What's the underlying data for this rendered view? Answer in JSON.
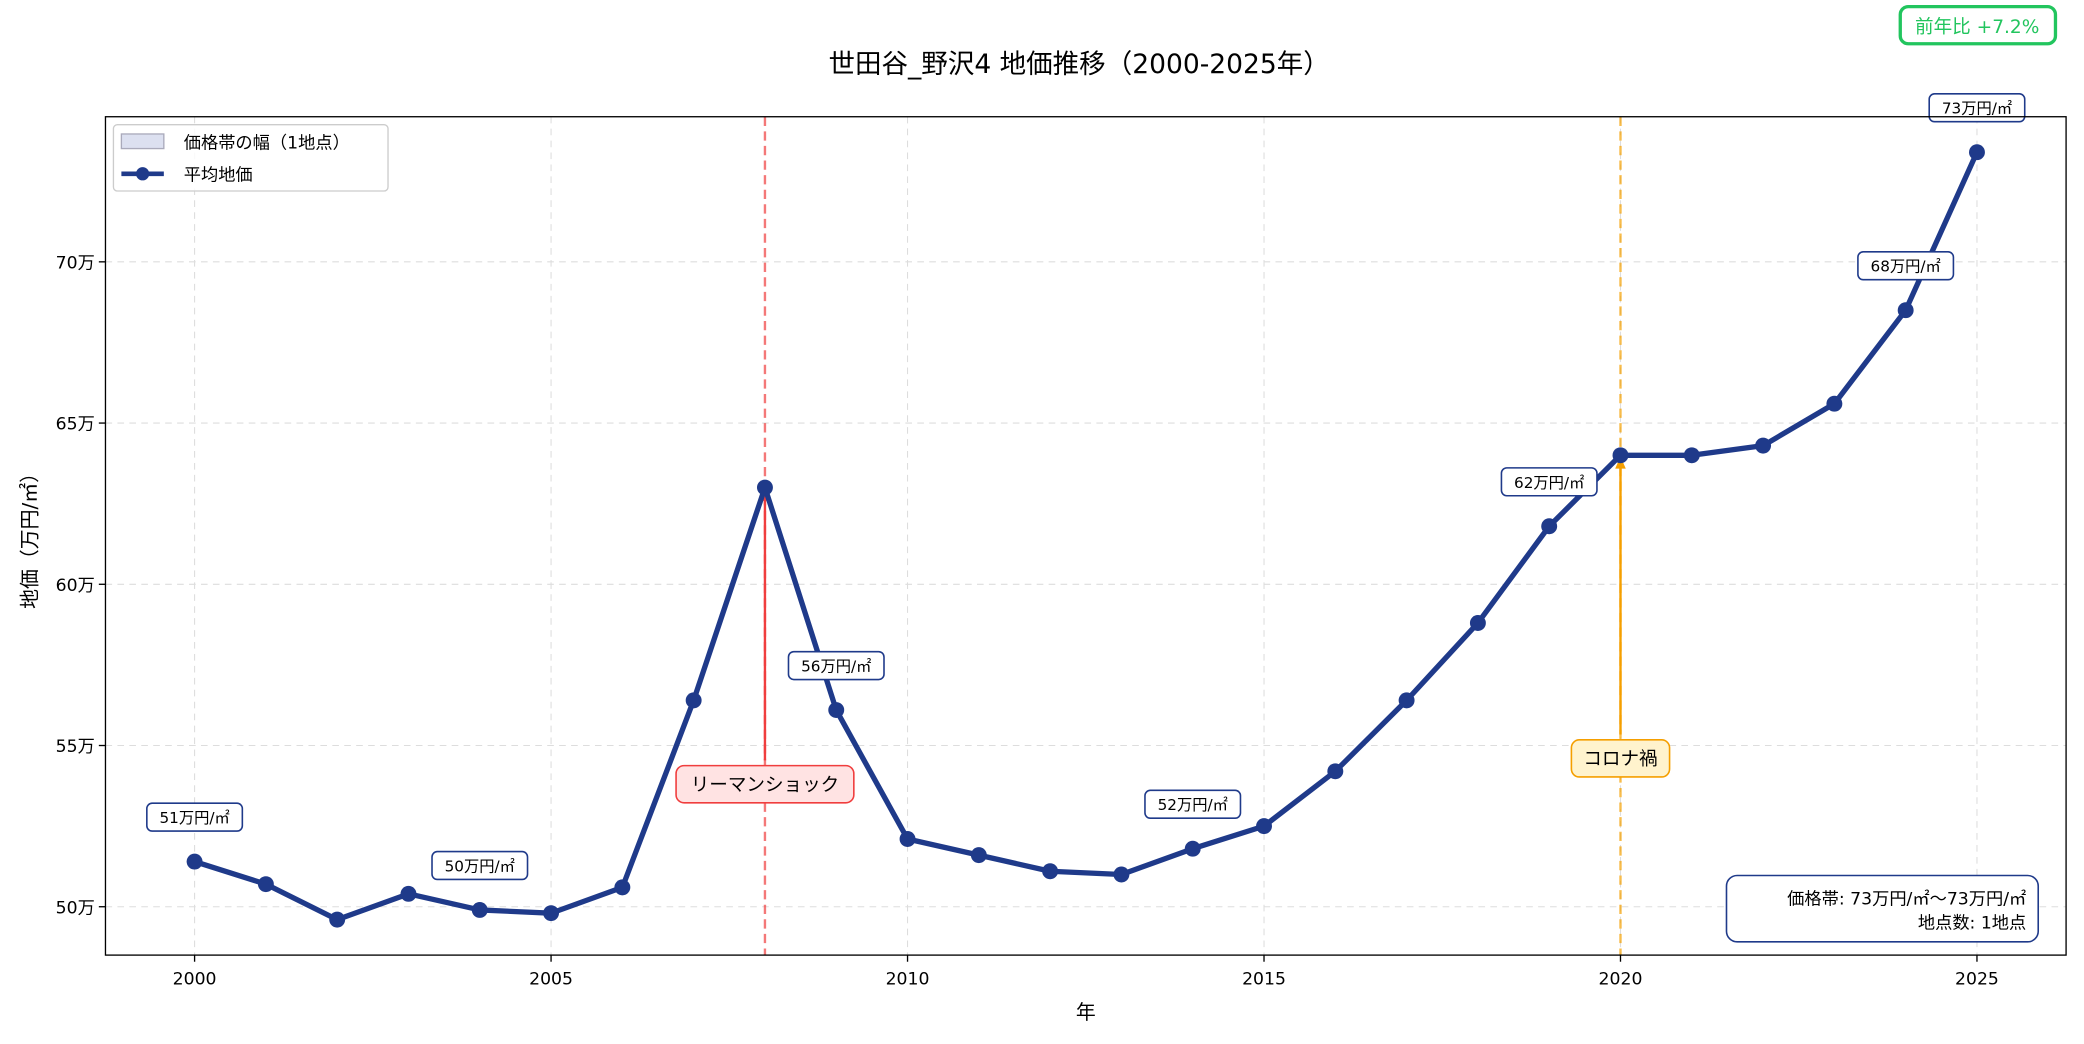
{
  "chart_data": {
    "type": "line",
    "title": "世田谷_野沢4 地価推移（2000-2025年）",
    "xlabel": "年",
    "ylabel": "地価（万円/㎡）",
    "xlim": [
      1998.75,
      2026.25
    ],
    "ylim": [
      48.5,
      74.5
    ],
    "xticks": [
      2000,
      2005,
      2010,
      2015,
      2020,
      2025
    ],
    "yticks": [
      50,
      55,
      60,
      65,
      70
    ],
    "ytick_labels": [
      "50万",
      "55万",
      "60万",
      "65万",
      "70万"
    ],
    "grid": true,
    "legend_placement": "top-left",
    "legend": [
      "価格帯の幅（1地点）",
      "平均地価"
    ],
    "series": [
      {
        "name": "平均地価",
        "color": "#1f3a8a",
        "x": [
          2000,
          2001,
          2002,
          2003,
          2004,
          2005,
          2006,
          2007,
          2008,
          2009,
          2010,
          2011,
          2012,
          2013,
          2014,
          2015,
          2016,
          2017,
          2018,
          2019,
          2020,
          2021,
          2022,
          2023,
          2024,
          2025
        ],
        "y": [
          51.4,
          50.7,
          49.6,
          50.4,
          49.9,
          49.8,
          50.6,
          56.4,
          63.0,
          56.1,
          52.1,
          51.6,
          51.1,
          51.0,
          51.8,
          52.5,
          54.2,
          56.4,
          58.8,
          61.8,
          64.0,
          64.0,
          64.3,
          65.6,
          68.5,
          73.4
        ]
      }
    ],
    "band_color": "#c5cce6",
    "point_labels": [
      {
        "x": 2000,
        "y": 51.4,
        "text": "51万円/㎡"
      },
      {
        "x": 2004,
        "y": 49.9,
        "text": "50万円/㎡"
      },
      {
        "x": 2009,
        "y": 56.1,
        "text": "56万円/㎡"
      },
      {
        "x": 2014,
        "y": 51.8,
        "text": "52万円/㎡"
      },
      {
        "x": 2019,
        "y": 61.8,
        "text": "62万円/㎡"
      },
      {
        "x": 2024,
        "y": 68.5,
        "text": "68万円/㎡"
      },
      {
        "x": 2025,
        "y": 73.4,
        "text": "73万円/㎡"
      }
    ],
    "events": [
      {
        "x": 2008,
        "text": "リーマンショック",
        "color": "#f03e3e",
        "fill": "#ffe3e3",
        "arrow_to_y": 63.0,
        "label_y": 53.8
      },
      {
        "x": 2020,
        "text": "コロナ禍",
        "color": "#f59f00",
        "fill": "#fff3cd",
        "arrow_to_y": 64.0,
        "label_y": 54.6
      }
    ],
    "info_box": [
      "価格帯: 73万円/㎡〜73万円/㎡",
      "地点数: 1地点"
    ],
    "yoy_badge": {
      "text": "前年比 +7.2%",
      "color": "#22c55e"
    }
  }
}
